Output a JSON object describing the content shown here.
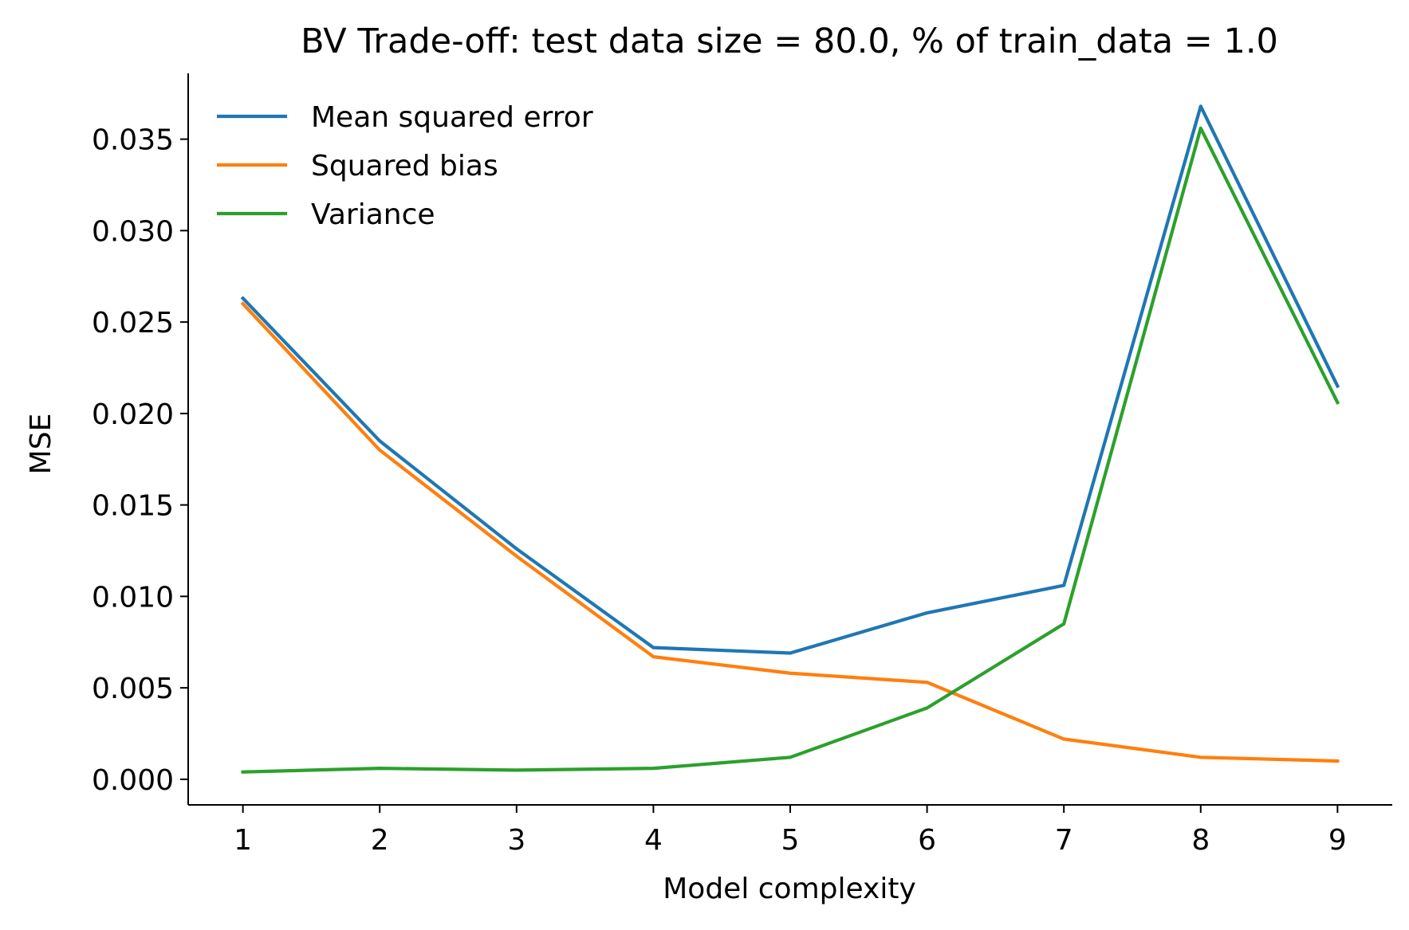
{
  "chart_data": {
    "type": "line",
    "title": "BV Trade-off: test data size = 80.0, % of train_data = 1.0",
    "xlabel": "Model complexity",
    "ylabel": "MSE",
    "x": [
      1,
      2,
      3,
      4,
      5,
      6,
      7,
      8,
      9
    ],
    "xlim": [
      0.6,
      9.4
    ],
    "ylim": [
      -0.0014,
      0.0386
    ],
    "xticks": [
      "1",
      "2",
      "3",
      "4",
      "5",
      "6",
      "7",
      "8",
      "9"
    ],
    "yticks": [
      "0.000",
      "0.005",
      "0.010",
      "0.015",
      "0.020",
      "0.025",
      "0.030",
      "0.035"
    ],
    "ytick_values": [
      0,
      0.005,
      0.01,
      0.015,
      0.02,
      0.025,
      0.03,
      0.035
    ],
    "grid": false,
    "legend_position": "upper-left",
    "series": [
      {
        "name": "Mean squared error",
        "color": "#1f77b4",
        "values": [
          0.0263,
          0.0185,
          0.0126,
          0.0072,
          0.0069,
          0.0091,
          0.0106,
          0.0368,
          0.0215
        ]
      },
      {
        "name": "Squared bias",
        "color": "#ff7f0e",
        "values": [
          0.026,
          0.018,
          0.0122,
          0.0067,
          0.0058,
          0.0053,
          0.0022,
          0.0012,
          0.001
        ]
      },
      {
        "name": "Variance",
        "color": "#2ca02c",
        "values": [
          0.0004,
          0.0006,
          0.0005,
          0.0006,
          0.0012,
          0.0039,
          0.0085,
          0.0356,
          0.0206
        ]
      }
    ]
  }
}
